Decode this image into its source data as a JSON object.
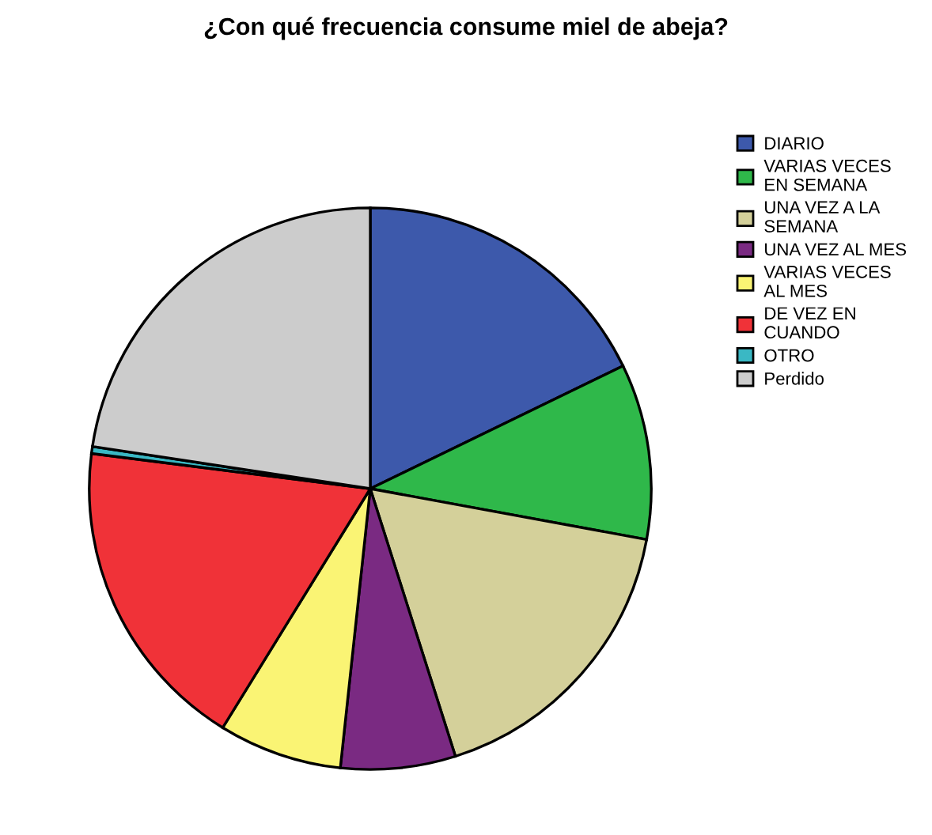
{
  "chart_data": {
    "type": "pie",
    "title": "¿Con qué frecuencia consume miel de abeja?",
    "categories": [
      "DIARIO",
      "VARIAS VECES\nEN SEMANA",
      "UNA VEZ A LA\nSEMANA",
      "UNA VEZ AL MES",
      "VARIAS VECES\nAL MES",
      "DE VEZ EN\nCUANDO",
      "OTRO",
      "Perdido"
    ],
    "values": [
      17.8,
      10.1,
      17.2,
      6.6,
      7.1,
      18.2,
      0.4,
      22.6
    ],
    "colors": [
      "#3d59ab",
      "#2fb84a",
      "#d4d09a",
      "#7a2a82",
      "#faf474",
      "#f03238",
      "#3ab8c4",
      "#cccccc"
    ],
    "legend": "right"
  }
}
